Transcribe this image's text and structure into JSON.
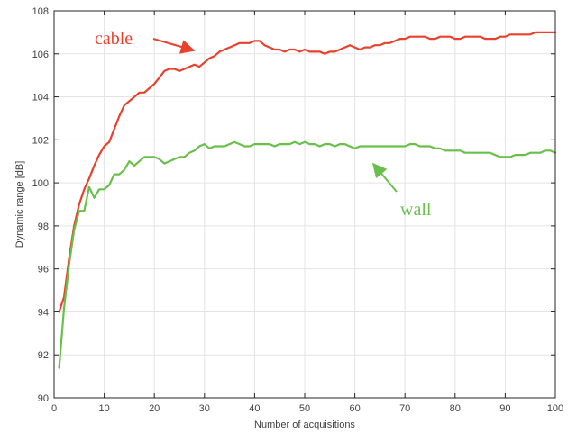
{
  "chart_data": {
    "type": "line",
    "title": "",
    "xlabel": "Number of acquisitions",
    "ylabel": "Dynamic range [dB]",
    "xlim": [
      0,
      100
    ],
    "ylim": [
      90,
      108
    ],
    "xticks": [
      0,
      10,
      20,
      30,
      40,
      50,
      60,
      70,
      80,
      90,
      100
    ],
    "yticks": [
      90,
      92,
      94,
      96,
      98,
      100,
      102,
      104,
      106,
      108
    ],
    "grid": true,
    "legend": "none",
    "series": [
      {
        "name": "cable",
        "color": "#e8412d",
        "x": [
          1,
          2,
          3,
          4,
          5,
          6,
          7,
          8,
          9,
          10,
          11,
          12,
          13,
          14,
          15,
          16,
          17,
          18,
          19,
          20,
          21,
          22,
          23,
          24,
          25,
          26,
          27,
          28,
          29,
          30,
          31,
          32,
          33,
          34,
          35,
          36,
          37,
          38,
          39,
          40,
          41,
          42,
          43,
          44,
          45,
          46,
          47,
          48,
          49,
          50,
          51,
          52,
          53,
          54,
          55,
          56,
          57,
          58,
          59,
          60,
          61,
          62,
          63,
          64,
          65,
          66,
          67,
          68,
          69,
          70,
          71,
          72,
          73,
          74,
          75,
          76,
          77,
          78,
          79,
          80,
          81,
          82,
          83,
          84,
          85,
          86,
          87,
          88,
          89,
          90,
          91,
          92,
          93,
          94,
          95,
          96,
          97,
          98,
          99,
          100
        ],
        "y": [
          94,
          94.7,
          96.5,
          98,
          99,
          99.7,
          100.2,
          100.8,
          101.3,
          101.7,
          101.9,
          102.5,
          103.1,
          103.6,
          103.8,
          104,
          104.2,
          104.2,
          104.4,
          104.6,
          104.9,
          105.2,
          105.3,
          105.3,
          105.2,
          105.3,
          105.4,
          105.5,
          105.4,
          105.6,
          105.8,
          105.9,
          106.1,
          106.2,
          106.3,
          106.4,
          106.5,
          106.5,
          106.5,
          106.6,
          106.6,
          106.4,
          106.3,
          106.2,
          106.2,
          106.1,
          106.2,
          106.2,
          106.1,
          106.2,
          106.1,
          106.1,
          106.1,
          106,
          106.1,
          106.1,
          106.2,
          106.3,
          106.4,
          106.3,
          106.2,
          106.3,
          106.3,
          106.4,
          106.4,
          106.5,
          106.5,
          106.6,
          106.7,
          106.7,
          106.8,
          106.8,
          106.8,
          106.8,
          106.7,
          106.7,
          106.8,
          106.8,
          106.8,
          106.7,
          106.7,
          106.8,
          106.8,
          106.8,
          106.8,
          106.7,
          106.7,
          106.7,
          106.8,
          106.8,
          106.9,
          106.9,
          106.9,
          106.9,
          106.9,
          107,
          107,
          107,
          107,
          107
        ]
      },
      {
        "name": "wall",
        "color": "#6abf4b",
        "x": [
          1,
          2,
          3,
          4,
          5,
          6,
          7,
          8,
          9,
          10,
          11,
          12,
          13,
          14,
          15,
          16,
          17,
          18,
          19,
          20,
          21,
          22,
          23,
          24,
          25,
          26,
          27,
          28,
          29,
          30,
          31,
          32,
          33,
          34,
          35,
          36,
          37,
          38,
          39,
          40,
          41,
          42,
          43,
          44,
          45,
          46,
          47,
          48,
          49,
          50,
          51,
          52,
          53,
          54,
          55,
          56,
          57,
          58,
          59,
          60,
          61,
          62,
          63,
          64,
          65,
          66,
          67,
          68,
          69,
          70,
          71,
          72,
          73,
          74,
          75,
          76,
          77,
          78,
          79,
          80,
          81,
          82,
          83,
          84,
          85,
          86,
          87,
          88,
          89,
          90,
          91,
          92,
          93,
          94,
          95,
          96,
          97,
          98,
          99,
          100
        ],
        "y": [
          91.4,
          94.2,
          96.2,
          97.8,
          98.7,
          98.7,
          99.8,
          99.3,
          99.7,
          99.7,
          99.9,
          100.4,
          100.4,
          100.6,
          101,
          100.8,
          101,
          101.2,
          101.2,
          101.2,
          101.1,
          100.9,
          101,
          101.1,
          101.2,
          101.2,
          101.4,
          101.5,
          101.7,
          101.8,
          101.6,
          101.7,
          101.7,
          101.7,
          101.8,
          101.9,
          101.8,
          101.7,
          101.7,
          101.8,
          101.8,
          101.8,
          101.8,
          101.7,
          101.8,
          101.8,
          101.8,
          101.9,
          101.8,
          101.9,
          101.8,
          101.8,
          101.7,
          101.8,
          101.8,
          101.7,
          101.8,
          101.8,
          101.7,
          101.6,
          101.7,
          101.7,
          101.7,
          101.7,
          101.7,
          101.7,
          101.7,
          101.7,
          101.7,
          101.7,
          101.8,
          101.8,
          101.7,
          101.7,
          101.7,
          101.6,
          101.6,
          101.5,
          101.5,
          101.5,
          101.5,
          101.4,
          101.4,
          101.4,
          101.4,
          101.4,
          101.4,
          101.3,
          101.2,
          101.2,
          101.2,
          101.3,
          101.3,
          101.3,
          101.4,
          101.4,
          101.4,
          101.5,
          101.5,
          101.4
        ]
      }
    ],
    "annotations": [
      {
        "text": "cable",
        "color": "#e8412d",
        "arrow_to": [
          28,
          105.8
        ]
      },
      {
        "text": "wall",
        "color": "#6abf4b",
        "arrow_to": [
          63,
          101
        ]
      }
    ]
  }
}
